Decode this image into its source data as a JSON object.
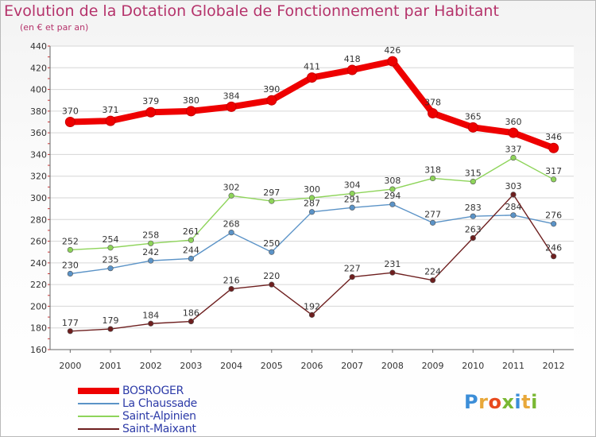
{
  "title": "Evolution de la Dotation Globale de Fonctionnement par Habitant",
  "subtitle": "(en € et par an)",
  "logo": {
    "text": "Proxiti",
    "letter_colors": [
      "#3c8ed8",
      "#e8a83a",
      "#e84a1e",
      "#7ab833",
      "#3c8ed8",
      "#e8a83a",
      "#7ab833"
    ]
  },
  "chart_data": {
    "type": "line",
    "title": "Evolution de la Dotation Globale de Fonctionnement par Habitant",
    "subtitle": "(en € et par an)",
    "x": [
      "2000",
      "2001",
      "2002",
      "2003",
      "2004",
      "2005",
      "2006",
      "2007",
      "2008",
      "2009",
      "2010",
      "2011",
      "2012"
    ],
    "xlabel": "",
    "ylabel": "",
    "ylim": [
      160,
      440
    ],
    "yticks": [
      160,
      180,
      200,
      220,
      240,
      260,
      280,
      300,
      320,
      340,
      360,
      380,
      400,
      420,
      440
    ],
    "grid": true,
    "legend_position": "bottom-left",
    "series": [
      {
        "name": "BOSROGER",
        "color": "#ee0000",
        "emphasis": true,
        "values": [
          370,
          371,
          379,
          380,
          384,
          390,
          411,
          418,
          426,
          378,
          365,
          360,
          346
        ]
      },
      {
        "name": "La Chaussade",
        "color": "#5b93c7",
        "emphasis": false,
        "values": [
          230,
          235,
          242,
          244,
          268,
          250,
          287,
          291,
          294,
          277,
          283,
          284,
          276
        ]
      },
      {
        "name": "Saint-Alpinien",
        "color": "#8ed45a",
        "emphasis": false,
        "values": [
          252,
          254,
          258,
          261,
          302,
          297,
          300,
          304,
          308,
          318,
          315,
          337,
          317
        ]
      },
      {
        "name": "Saint-Maixant",
        "color": "#6e1f1f",
        "emphasis": false,
        "values": [
          177,
          179,
          184,
          186,
          216,
          220,
          192,
          227,
          231,
          224,
          263,
          303,
          246
        ]
      }
    ]
  }
}
